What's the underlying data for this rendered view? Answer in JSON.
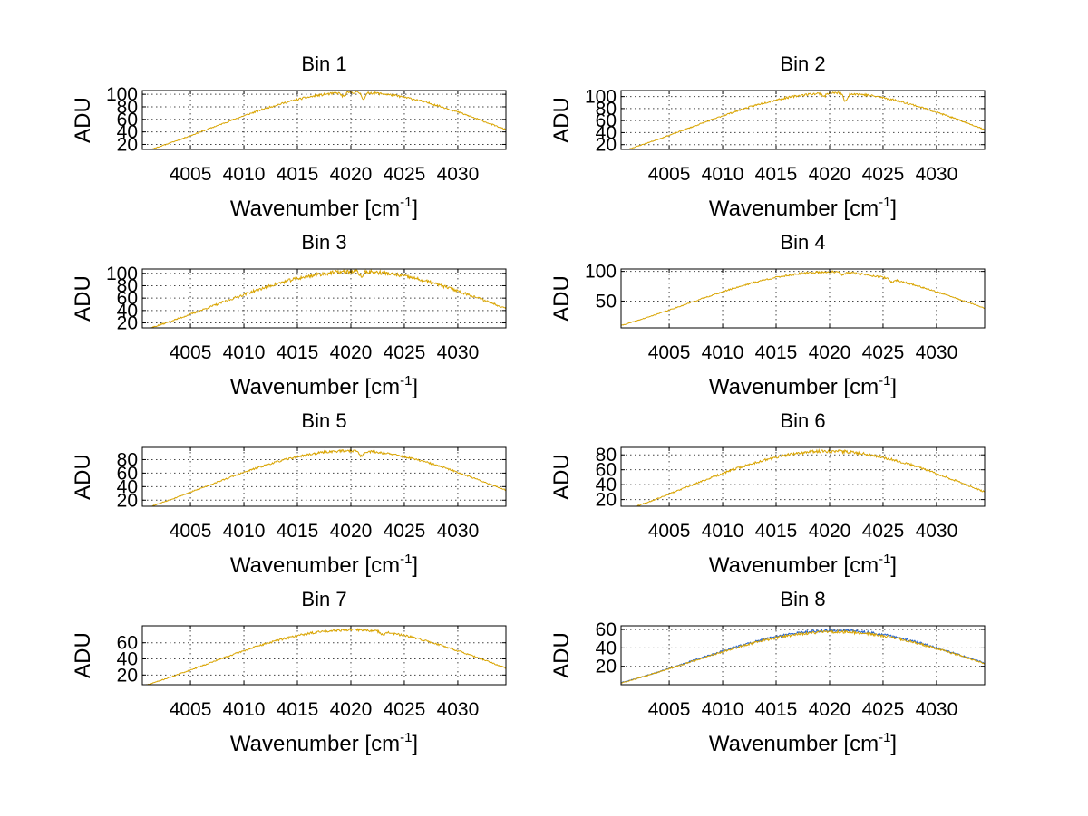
{
  "chart_data": [
    {
      "type": "line",
      "title": "Bin 1",
      "xlabel": "Wavenumber [cm",
      "xlabel_sup": "-1",
      "xlabel_end": "]",
      "ylabel": "ADU",
      "xlim": [
        4000.5,
        4034.5
      ],
      "ylim": [
        12,
        106
      ],
      "xticks": [
        4005,
        4010,
        4015,
        4020,
        4025,
        4030
      ],
      "yticks": [
        20,
        40,
        60,
        80,
        100
      ],
      "grid": true,
      "curve": {
        "center": 4020.5,
        "peak": 103,
        "floor": -40,
        "sigma": 13.5
      },
      "dips": [
        [
          4019.3,
          6
        ],
        [
          4021.2,
          10
        ]
      ],
      "noise": 1.5,
      "seed": 11,
      "series": [
        {
          "color": "#d9a400",
          "values_from": "curve"
        }
      ]
    },
    {
      "type": "line",
      "title": "Bin 2",
      "xlabel": "Wavenumber [cm",
      "xlabel_sup": "-1",
      "xlabel_end": "]",
      "ylabel": "ADU",
      "xlim": [
        4000.5,
        4034.5
      ],
      "ylim": [
        12,
        110
      ],
      "xticks": [
        4005,
        4010,
        4015,
        4020,
        4025,
        4030
      ],
      "yticks": [
        20,
        40,
        60,
        80,
        100
      ],
      "grid": true,
      "curve": {
        "center": 4020.5,
        "peak": 106,
        "floor": -40,
        "sigma": 13.5
      },
      "dips": [
        [
          4021.5,
          14
        ],
        [
          4019.5,
          5
        ]
      ],
      "noise": 1.5,
      "seed": 23,
      "series": [
        {
          "color": "#d9a400",
          "values_from": "curve"
        }
      ]
    },
    {
      "type": "line",
      "title": "Bin 3",
      "xlabel": "Wavenumber [cm",
      "xlabel_sup": "-1",
      "xlabel_end": "]",
      "ylabel": "ADU",
      "xlim": [
        4000.5,
        4034.5
      ],
      "ylim": [
        12,
        107
      ],
      "xticks": [
        4005,
        4010,
        4015,
        4020,
        4025,
        4030
      ],
      "yticks": [
        20,
        40,
        60,
        80,
        100
      ],
      "grid": true,
      "curve": {
        "center": 4020.5,
        "peak": 103,
        "floor": -40,
        "sigma": 13.5
      },
      "dips": [
        [
          4021.0,
          8
        ]
      ],
      "noise": 2.5,
      "seed": 37,
      "series": [
        {
          "color": "#d9a400",
          "values_from": "curve"
        }
      ]
    },
    {
      "type": "line",
      "title": "Bin 4",
      "xlabel": "Wavenumber [cm",
      "xlabel_sup": "-1",
      "xlabel_end": "]",
      "ylabel": "ADU",
      "xlim": [
        4000.5,
        4034.5
      ],
      "ylim": [
        5,
        104
      ],
      "xticks": [
        4005,
        4010,
        4015,
        4020,
        4025,
        4030
      ],
      "yticks": [
        50,
        100
      ],
      "grid": true,
      "curve": {
        "center": 4020.0,
        "peak": 99,
        "floor": -40,
        "sigma": 13.5
      },
      "dips": [
        [
          4021.2,
          5
        ],
        [
          4025.8,
          5
        ]
      ],
      "noise": 1.3,
      "seed": 41,
      "series": [
        {
          "color": "#d9a400",
          "values_from": "curve"
        }
      ]
    },
    {
      "type": "line",
      "title": "Bin 5",
      "xlabel": "Wavenumber [cm",
      "xlabel_sup": "-1",
      "xlabel_end": "]",
      "ylabel": "ADU",
      "xlim": [
        4000.5,
        4034.5
      ],
      "ylim": [
        11,
        98
      ],
      "xticks": [
        4005,
        4010,
        4015,
        4020,
        4025,
        4030
      ],
      "yticks": [
        20,
        40,
        60,
        80
      ],
      "grid": true,
      "curve": {
        "center": 4020.0,
        "peak": 93,
        "floor": -40,
        "sigma": 13.5
      },
      "dips": [
        [
          4021.0,
          8
        ]
      ],
      "noise": 1.4,
      "seed": 53,
      "series": [
        {
          "color": "#d9a400",
          "values_from": "curve"
        }
      ]
    },
    {
      "type": "line",
      "title": "Bin 6",
      "xlabel": "Wavenumber [cm",
      "xlabel_sup": "-1",
      "xlabel_end": "]",
      "ylabel": "ADU",
      "xlim": [
        4000.5,
        4034.5
      ],
      "ylim": [
        11,
        90
      ],
      "xticks": [
        4005,
        4010,
        4015,
        4020,
        4025,
        4030
      ],
      "yticks": [
        20,
        40,
        60,
        80
      ],
      "grid": true,
      "curve": {
        "center": 4020.0,
        "peak": 85,
        "floor": -40,
        "sigma": 13.5
      },
      "dips": [],
      "noise": 1.6,
      "seed": 67,
      "series": [
        {
          "color": "#d9a400",
          "values_from": "curve"
        }
      ]
    },
    {
      "type": "line",
      "title": "Bin 7",
      "xlabel": "Wavenumber [cm",
      "xlabel_sup": "-1",
      "xlabel_end": "]",
      "ylabel": "ADU",
      "xlim": [
        4000.5,
        4034.5
      ],
      "ylim": [
        8,
        81
      ],
      "xticks": [
        4005,
        4010,
        4015,
        4020,
        4025,
        4030
      ],
      "yticks": [
        20,
        40,
        60
      ],
      "grid": true,
      "curve": {
        "center": 4020.0,
        "peak": 76,
        "floor": -32,
        "sigma": 13.5
      },
      "dips": [
        [
          4023.0,
          3
        ]
      ],
      "noise": 1.2,
      "seed": 71,
      "series": [
        {
          "color": "#d9a400",
          "values_from": "curve"
        }
      ]
    },
    {
      "type": "line",
      "title": "Bin 8",
      "xlabel": "Wavenumber [cm",
      "xlabel_sup": "-1",
      "xlabel_end": "]",
      "ylabel": "ADU",
      "xlim": [
        4000.5,
        4034.5
      ],
      "ylim": [
        0,
        64
      ],
      "xticks": [
        4005,
        4010,
        4015,
        4020,
        4025,
        4030
      ],
      "yticks": [
        20,
        40,
        60
      ],
      "grid": true,
      "curve": {
        "center": 4020.5,
        "peak": 58,
        "floor": -26,
        "sigma": 13.5
      },
      "dips": [],
      "noise": 1.2,
      "seed": 89,
      "series": [
        {
          "color": "#1f5fd0",
          "values_from": "curve",
          "offset": 1.0
        },
        {
          "color": "#d9a400",
          "values_from": "curve",
          "offset": -0.5
        }
      ]
    }
  ]
}
